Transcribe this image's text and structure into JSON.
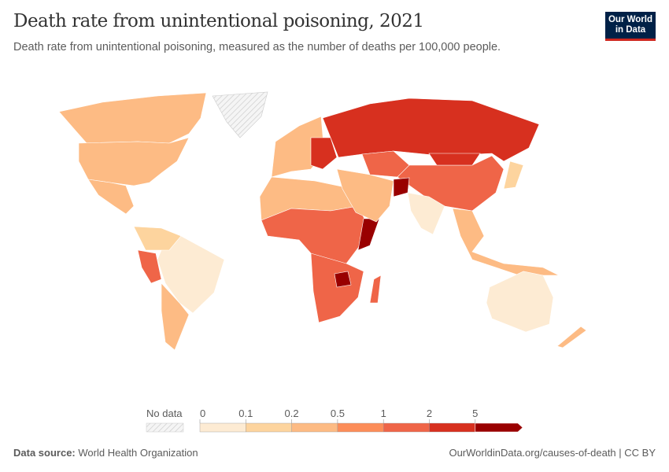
{
  "header": {
    "title": "Death rate from unintentional poisoning, 2021",
    "subtitle": "Death rate from unintentional poisoning, measured as the number of deaths per 100,000 people.",
    "logo_line1": "Our World",
    "logo_line2": "in Data"
  },
  "chart_data": {
    "type": "map",
    "title": "Death rate from unintentional poisoning, 2021",
    "subtitle": "Death rate from unintentional poisoning, measured as the number of deaths per 100,000 people.",
    "legend": {
      "no_data_label": "No data",
      "no_data_color": "#e8e8e8",
      "bins": [
        "0",
        "0.1",
        "0.2",
        "0.5",
        "1",
        "2",
        "5"
      ],
      "colors": [
        "#fdebd3",
        "#fdd49e",
        "#fdbb84",
        "#fc8d59",
        "#ef6548",
        "#d7301f",
        "#990000"
      ]
    },
    "regions": [
      {
        "name": "Canada",
        "bin": 2
      },
      {
        "name": "United States",
        "bin": 2
      },
      {
        "name": "Mexico",
        "bin": 2
      },
      {
        "name": "Greenland",
        "bin": -1
      },
      {
        "name": "Brazil",
        "bin": 0
      },
      {
        "name": "Peru",
        "bin": 4
      },
      {
        "name": "Argentina",
        "bin": 2
      },
      {
        "name": "Colombia",
        "bin": 1
      },
      {
        "name": "North Africa",
        "bin": 2
      },
      {
        "name": "Sub-Saharan Africa",
        "bin": 4
      },
      {
        "name": "Southern Africa",
        "bin": 4
      },
      {
        "name": "Zimbabwe",
        "bin": 6
      },
      {
        "name": "Somalia",
        "bin": 6
      },
      {
        "name": "Madagascar",
        "bin": 4
      },
      {
        "name": "Western Europe",
        "bin": 2
      },
      {
        "name": "Eastern Europe",
        "bin": 5
      },
      {
        "name": "Russia",
        "bin": 5
      },
      {
        "name": "Central Asia",
        "bin": 4
      },
      {
        "name": "China",
        "bin": 4
      },
      {
        "name": "Mongolia",
        "bin": 5
      },
      {
        "name": "Middle East",
        "bin": 2
      },
      {
        "name": "Afghanistan",
        "bin": 6
      },
      {
        "name": "India",
        "bin": 0
      },
      {
        "name": "Southeast Asia",
        "bin": 2
      },
      {
        "name": "Japan",
        "bin": 1
      },
      {
        "name": "Australia",
        "bin": 0
      },
      {
        "name": "New Zealand",
        "bin": 2
      }
    ]
  },
  "footer": {
    "source_label": "Data source:",
    "source": "World Health Organization",
    "link": "OurWorldinData.org/causes-of-death | CC BY"
  }
}
